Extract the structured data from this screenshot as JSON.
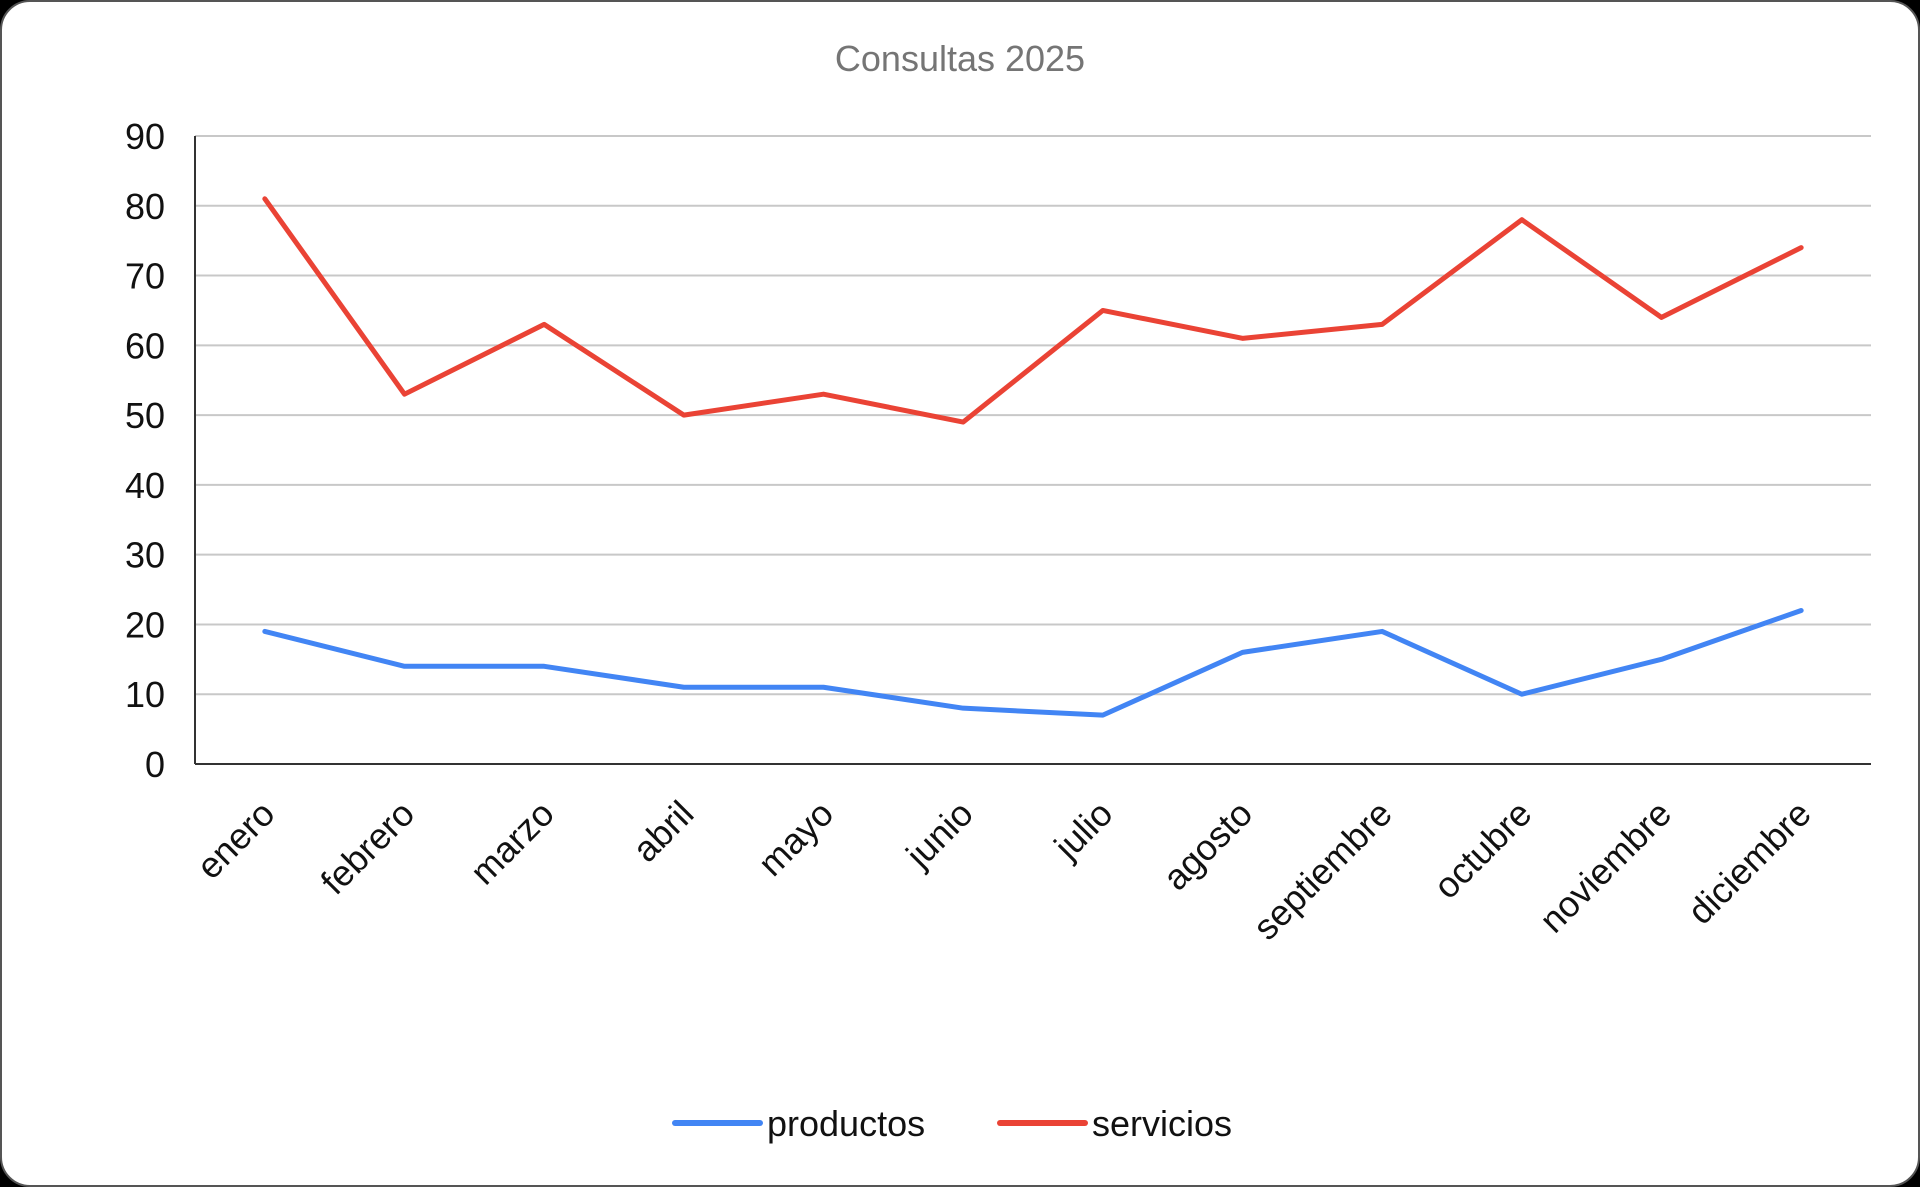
{
  "chart_data": {
    "type": "line",
    "title": "Consultas 2025",
    "xlabel": "",
    "ylabel": "",
    "ylim": [
      0,
      90
    ],
    "yticks": [
      "0",
      "10",
      "20",
      "30",
      "40",
      "50",
      "60",
      "70",
      "80",
      "90"
    ],
    "grid": true,
    "legend_position": "bottom",
    "categories": [
      "enero",
      "febrero",
      "marzo",
      "abril",
      "mayo",
      "junio",
      "julio",
      "agosto",
      "septiembre",
      "octubre",
      "noviembre",
      "diciembre"
    ],
    "series": [
      {
        "name": "productos",
        "color": "#4285f4",
        "values": [
          19,
          14,
          14,
          11,
          11,
          8,
          7,
          16,
          19,
          10,
          15,
          22
        ]
      },
      {
        "name": "servicios",
        "color": "#ea4335",
        "values": [
          81,
          53,
          63,
          50,
          53,
          49,
          65,
          61,
          63,
          78,
          64,
          74
        ]
      }
    ]
  }
}
